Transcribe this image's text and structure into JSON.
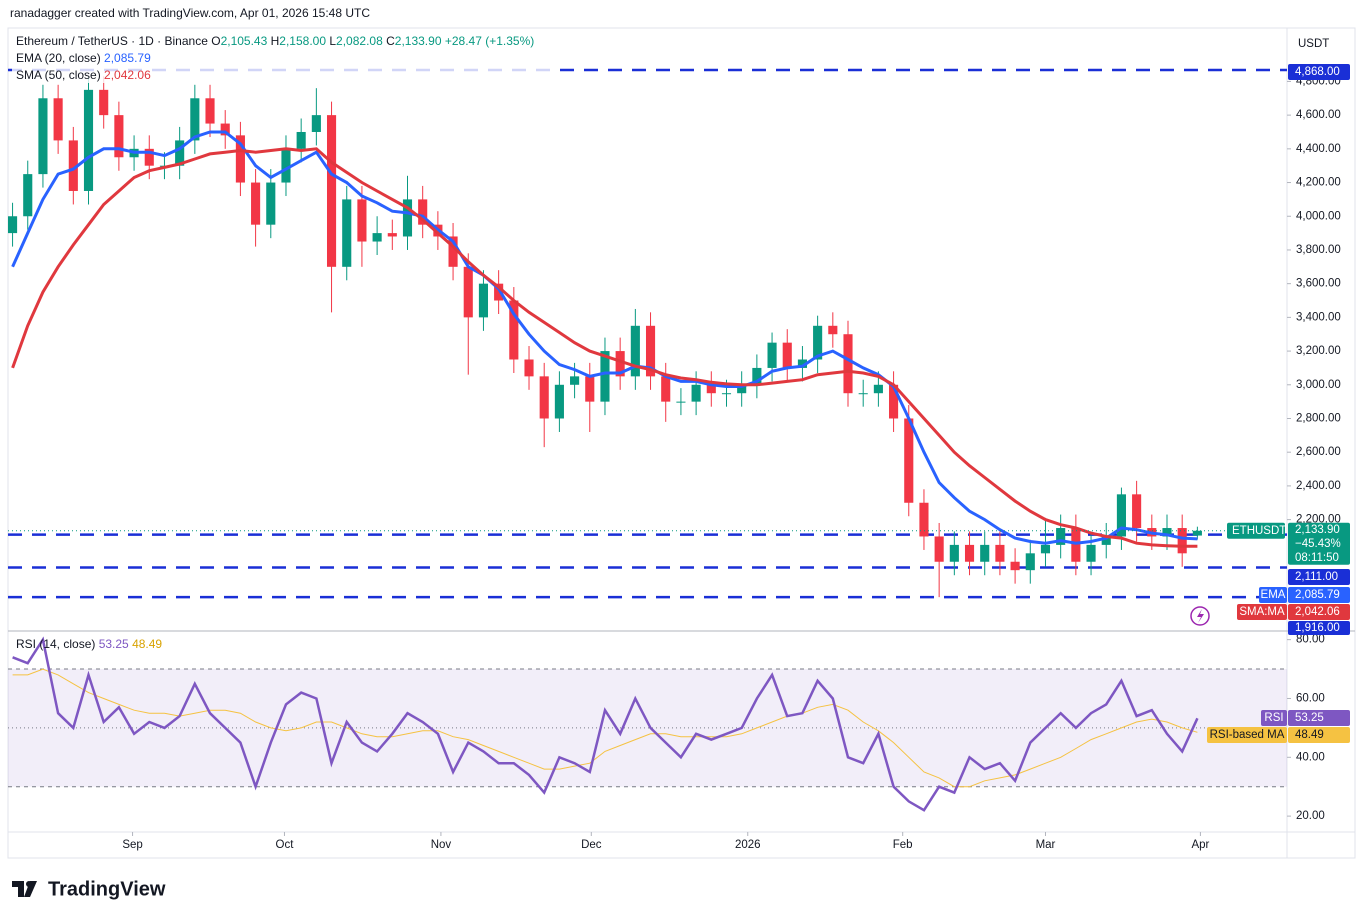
{
  "header": "ranadagger created with TradingView.com, Apr 01, 2026 15:48 UTC",
  "footer": {
    "brand": "TradingView"
  },
  "chart_data": {
    "type": "candlestick",
    "legend": {
      "symbol": "Ethereum / TetherUS · 1D · Binance",
      "ohlc": [
        {
          "key": "O",
          "value": "2,105.43"
        },
        {
          "key": "H",
          "value": "2,158.00"
        },
        {
          "key": "L",
          "value": "2,082.08"
        },
        {
          "key": "C",
          "value": "2,133.90"
        }
      ],
      "change": "+28.47 (+1.35%)",
      "ema": "EMA (20, close)",
      "ema_value": "2,085.79",
      "sma": "SMA (50, close)",
      "sma_value": "2,042.06"
    },
    "currency": "USDT",
    "x": [
      0,
      1,
      2,
      3,
      4,
      5,
      6,
      7,
      8,
      9,
      10,
      11,
      12,
      13,
      14,
      15,
      16,
      17,
      18,
      19,
      20,
      21,
      22,
      23,
      24,
      25,
      26,
      27,
      28,
      29,
      30,
      31,
      32,
      33,
      34,
      35,
      36,
      37,
      38,
      39,
      40,
      41,
      42,
      43,
      44,
      45,
      46,
      47,
      48,
      49,
      50,
      51,
      52,
      53,
      54,
      55,
      56,
      57,
      58,
      59,
      60,
      61,
      62,
      63,
      64,
      65,
      66,
      67,
      68,
      69,
      70,
      71,
      72,
      73,
      74,
      75,
      76,
      77,
      78
    ],
    "xlim": [
      -0.3,
      83.9
    ],
    "xticks": [
      {
        "value": 7.9,
        "label": "Sep"
      },
      {
        "value": 17.9,
        "label": "Oct"
      },
      {
        "value": 28.2,
        "label": "Nov"
      },
      {
        "value": 38.1,
        "label": "Dec"
      },
      {
        "value": 48.4,
        "label": "2026"
      },
      {
        "value": 58.6,
        "label": "Feb"
      },
      {
        "value": 68,
        "label": "Mar"
      },
      {
        "value": 78.2,
        "label": "Apr"
      }
    ],
    "open": [
      3900,
      4000,
      4250,
      4700,
      4450,
      4150,
      4750,
      4600,
      4350,
      4400,
      4300,
      4300,
      4450,
      4700,
      4550,
      4480,
      4200,
      3950,
      4200,
      4400,
      4500,
      4600,
      3700,
      4100,
      3850,
      3900,
      3880,
      4100,
      3950,
      3880,
      3700,
      3400,
      3600,
      3500,
      3150,
      3050,
      2800,
      3000,
      3050,
      2900,
      3200,
      3050,
      3350,
      3050,
      2900,
      2900,
      3000,
      2950,
      2950,
      3000,
      3100,
      3250,
      3100,
      3150,
      3350,
      3300,
      2950,
      2950,
      3000,
      2800,
      2300,
      2100,
      1950,
      2050,
      1950,
      2050,
      1950,
      1900,
      2000,
      2050,
      2150,
      1950,
      2050,
      2100,
      2350,
      2150,
      2100,
      2150,
      2105.43
    ],
    "high": [
      4080,
      4330,
      4780,
      4780,
      4530,
      4830,
      4830,
      4680,
      4480,
      4480,
      4380,
      4530,
      4780,
      4780,
      4630,
      4560,
      4280,
      4280,
      4480,
      4580,
      4760,
      4680,
      4180,
      4180,
      4000,
      3980,
      4240,
      4180,
      4030,
      3960,
      3780,
      3680,
      3680,
      3580,
      3230,
      3130,
      3080,
      3130,
      3130,
      3280,
      3280,
      3450,
      3430,
      3130,
      2980,
      3080,
      3080,
      3030,
      3080,
      3180,
      3310,
      3330,
      3230,
      3410,
      3430,
      3380,
      3030,
      3080,
      3080,
      2880,
      2380,
      2180,
      2130,
      2130,
      2130,
      2130,
      2030,
      2080,
      2210,
      2230,
      2230,
      2130,
      2180,
      2390,
      2430,
      2230,
      2230,
      2230,
      2158
    ],
    "low": [
      3820,
      3920,
      4170,
      4370,
      4070,
      4070,
      4520,
      4270,
      4270,
      4220,
      4220,
      4220,
      4370,
      4470,
      4400,
      4120,
      3820,
      3870,
      4120,
      4320,
      4420,
      3430,
      3620,
      3700,
      3770,
      3800,
      3800,
      3870,
      3800,
      3620,
      3060,
      3320,
      3420,
      3070,
      2970,
      2630,
      2720,
      2920,
      2720,
      2820,
      2970,
      2970,
      2970,
      2780,
      2820,
      2820,
      2870,
      2870,
      2870,
      2920,
      3020,
      3020,
      3020,
      3070,
      3220,
      2870,
      2870,
      2870,
      2720,
      2220,
      2020,
      1740,
      1870,
      1870,
      1870,
      1870,
      1820,
      1820,
      1920,
      1970,
      1870,
      1870,
      1970,
      2020,
      2070,
      2020,
      2020,
      1920,
      2082.08
    ],
    "close": [
      4000,
      4250,
      4700,
      4450,
      4150,
      4750,
      4600,
      4350,
      4400,
      4300,
      4300,
      4450,
      4700,
      4550,
      4480,
      4200,
      3950,
      4200,
      4400,
      4500,
      4600,
      3700,
      4100,
      3850,
      3900,
      3880,
      4100,
      3950,
      3880,
      3700,
      3400,
      3600,
      3500,
      3150,
      3050,
      2800,
      3000,
      3050,
      2900,
      3200,
      3050,
      3350,
      3050,
      2900,
      2900,
      3000,
      2950,
      2950,
      3000,
      3100,
      3250,
      3100,
      3150,
      3350,
      3300,
      2950,
      2950,
      3000,
      2800,
      2300,
      2100,
      1950,
      2050,
      1950,
      2050,
      1950,
      1900,
      2000,
      2050,
      2150,
      1950,
      2050,
      2100,
      2350,
      2150,
      2100,
      2150,
      2000,
      2133.9
    ],
    "up_color": "#089981",
    "down_color": "#f23645",
    "series": [
      {
        "name": "EMA",
        "color": "#2962ff",
        "values": [
          3700,
          3900,
          4100,
          4250,
          4280,
          4350,
          4400,
          4400,
          4380,
          4380,
          4360,
          4400,
          4470,
          4500,
          4500,
          4430,
          4300,
          4230,
          4280,
          4330,
          4380,
          4250,
          4200,
          4120,
          4080,
          4030,
          4020,
          4000,
          3920,
          3850,
          3700,
          3650,
          3570,
          3420,
          3300,
          3200,
          3120,
          3090,
          3050,
          3070,
          3070,
          3110,
          3100,
          3050,
          3020,
          3020,
          3000,
          2990,
          2990,
          3020,
          3080,
          3100,
          3110,
          3170,
          3200,
          3150,
          3100,
          3060,
          2990,
          2800,
          2600,
          2420,
          2330,
          2250,
          2200,
          2140,
          2090,
          2070,
          2060,
          2075,
          2060,
          2070,
          2090,
          2150,
          2140,
          2120,
          2110,
          2090,
          2085.79
        ]
      },
      {
        "name": "SMA:MA",
        "color": "#e0383e",
        "values": [
          3100,
          3350,
          3550,
          3700,
          3830,
          3950,
          4070,
          4150,
          4230,
          4270,
          4290,
          4310,
          4340,
          4370,
          4380,
          4390,
          4380,
          4390,
          4400,
          4390,
          4400,
          4320,
          4260,
          4200,
          4150,
          4100,
          4050,
          3980,
          3900,
          3820,
          3730,
          3650,
          3580,
          3500,
          3430,
          3370,
          3310,
          3250,
          3200,
          3170,
          3140,
          3110,
          3090,
          3060,
          3040,
          3030,
          3015,
          3005,
          3000,
          3000,
          3010,
          3020,
          3030,
          3060,
          3070,
          3080,
          3070,
          3050,
          3000,
          2900,
          2800,
          2700,
          2600,
          2520,
          2450,
          2380,
          2310,
          2250,
          2200,
          2170,
          2150,
          2120,
          2100,
          2090,
          2060,
          2050,
          2045,
          2042,
          2042.06
        ]
      }
    ],
    "ylim": [
      1545,
      5117
    ],
    "yticks": [
      {
        "value": 2200,
        "label": "2,200.00"
      },
      {
        "value": 2400,
        "label": "2,400.00"
      },
      {
        "value": 2600,
        "label": "2,600.00"
      },
      {
        "value": 2800,
        "label": "2,800.00"
      },
      {
        "value": 3000,
        "label": "3,000.00"
      },
      {
        "value": 3200,
        "label": "3,200.00"
      },
      {
        "value": 3400,
        "label": "3,400.00"
      },
      {
        "value": 3600,
        "label": "3,600.00"
      },
      {
        "value": 3800,
        "label": "3,800.00"
      },
      {
        "value": 4000,
        "label": "4,000.00"
      },
      {
        "value": 4200,
        "label": "4,200.00"
      },
      {
        "value": 4400,
        "label": "4,400.00"
      },
      {
        "value": 4600,
        "label": "4,600.00"
      },
      {
        "value": 4800,
        "label": "4,800.00"
      }
    ],
    "levels": [
      {
        "value": 4868,
        "label": "4,868.00"
      },
      {
        "value": 2111,
        "label": "2,111.00"
      },
      {
        "value": 1916,
        "label": "1,916.00"
      }
    ],
    "unlabeled_levels": [
      1740
    ],
    "last_price": {
      "symbol": "ETHUSDT",
      "price": "2,133.90",
      "change": "−45.43%",
      "countdown": "08:11:50"
    },
    "ema_badge": {
      "name": "EMA",
      "value": "2,085.79"
    },
    "sma_badge": {
      "name": "SMA:MA",
      "value": "2,042.06"
    },
    "rsi": {
      "title": "RSI (14, close)",
      "value_text": "53.25",
      "ma_text": "48.49",
      "ylim": [
        14.6,
        82.6
      ],
      "yticks": [
        {
          "value": 20,
          "label": "20.00"
        },
        {
          "value": 40,
          "label": "40.00"
        },
        {
          "value": 60,
          "label": "60.00"
        },
        {
          "value": 80,
          "label": "80.00"
        }
      ],
      "bands": [
        30,
        50,
        70
      ],
      "series": [
        {
          "name": "RSI",
          "color": "#7e57c2",
          "values": [
            74,
            72,
            80,
            55,
            50,
            68,
            52,
            57,
            48,
            52,
            50,
            54,
            65,
            55,
            50,
            45,
            30,
            45,
            58,
            62,
            60,
            38,
            52,
            45,
            42,
            48,
            55,
            52,
            48,
            35,
            45,
            42,
            38,
            38,
            34,
            28,
            40,
            38,
            35,
            56,
            48,
            60,
            50,
            45,
            40,
            48,
            46,
            48,
            50,
            60,
            68,
            54,
            55,
            66,
            60,
            40,
            38,
            48,
            30,
            25,
            22,
            30,
            28,
            40,
            36,
            38,
            32,
            45,
            50,
            55,
            50,
            55,
            58,
            66,
            54,
            56,
            48,
            42,
            53.25
          ],
          "badge": "53.25"
        },
        {
          "name": "RSI-based MA",
          "color": "#f5c242",
          "values": [
            68,
            68,
            70,
            68,
            65,
            62,
            60,
            58,
            56,
            55,
            55,
            54,
            55,
            56,
            56,
            55,
            52,
            50,
            49,
            50,
            52,
            52,
            50,
            48,
            47,
            47,
            48,
            49,
            49,
            47,
            46,
            44,
            42,
            40,
            38,
            36,
            36,
            37,
            38,
            42,
            44,
            46,
            48,
            48,
            47,
            47,
            47,
            47,
            48,
            50,
            52,
            54,
            55,
            57,
            58,
            56,
            52,
            49,
            45,
            40,
            35,
            33,
            30,
            30,
            32,
            33,
            34,
            36,
            38,
            40,
            43,
            46,
            48,
            50,
            52,
            53,
            52,
            50,
            48.49
          ],
          "badge": "48.49"
        }
      ]
    }
  }
}
